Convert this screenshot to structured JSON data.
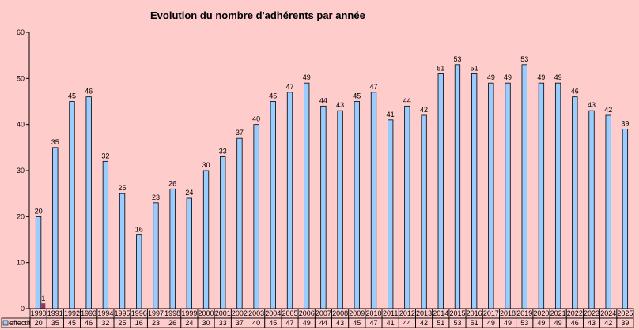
{
  "chart_data": {
    "type": "bar",
    "title": "Evolution du nombre d'adhérents par année",
    "xlabel": "",
    "ylabel": "",
    "ylim": [
      0,
      60
    ],
    "yticks": [
      0,
      10,
      20,
      30,
      40,
      50,
      60
    ],
    "grid": false,
    "legend_position": "bottom-left",
    "categories": [
      "1990",
      "1991",
      "1992",
      "1993",
      "1994",
      "1995",
      "1996",
      "1997",
      "1998",
      "1999",
      "2000",
      "2001",
      "2002",
      "2003",
      "2004",
      "2005",
      "2006",
      "2007",
      "2008",
      "2009",
      "2010",
      "2011",
      "2012",
      "2013",
      "2014",
      "2015",
      "2016",
      "2017",
      "2018",
      "2019",
      "2020",
      "2021",
      "2022",
      "2023",
      "2024",
      "2025"
    ],
    "series": [
      {
        "name": "effectif",
        "color": "#99ccff",
        "values": [
          20,
          35,
          45,
          46,
          32,
          25,
          16,
          23,
          26,
          24,
          30,
          33,
          37,
          40,
          45,
          47,
          49,
          44,
          43,
          45,
          47,
          41,
          44,
          42,
          51,
          53,
          51,
          49,
          49,
          53,
          49,
          49,
          46,
          43,
          42,
          39
        ]
      }
    ],
    "annotations": [
      {
        "category": "1990",
        "label": "1",
        "value": 1,
        "color": "#993366"
      }
    ],
    "data_table": true
  }
}
